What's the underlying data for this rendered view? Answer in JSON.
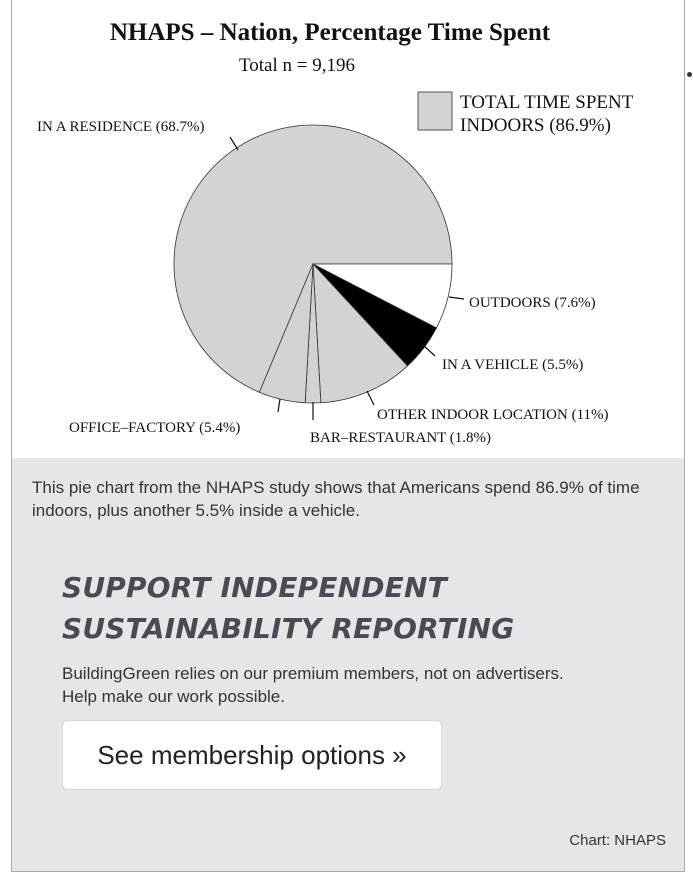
{
  "chart_data": {
    "type": "pie",
    "title": "NHAPS – Nation, Percentage Time Spent",
    "subtitle": "Total n = 9,196",
    "slices": [
      {
        "label": "IN A RESIDENCE (68.7%)",
        "value": 68.7,
        "color": "#d3d3d3"
      },
      {
        "label": "OUTDOORS (7.6%)",
        "value": 7.6,
        "color": "#ffffff"
      },
      {
        "label": "IN A VEHICLE (5.5%)",
        "value": 5.5,
        "color": "#000000"
      },
      {
        "label": "OTHER INDOOR LOCATION (11%)",
        "value": 11,
        "color": "#d3d3d3"
      },
      {
        "label": "BAR–RESTAURANT (1.8%)",
        "value": 1.8,
        "color": "#d3d3d3"
      },
      {
        "label": "OFFICE–FACTORY (5.4%)",
        "value": 5.4,
        "color": "#d3d3d3"
      }
    ],
    "legend": [
      {
        "label_line1": "TOTAL TIME SPENT",
        "label_line2": "INDOORS (86.9%)",
        "color": "#d3d3d3"
      }
    ],
    "legend_position": "top-right"
  },
  "caption": "This pie chart from the NHAPS study shows that Americans spend 86.9% of time indoors, plus another 5.5% inside a vehicle.",
  "promo": {
    "heading_line1": "SUPPORT INDEPENDENT",
    "heading_line2": "SUSTAINABILITY REPORTING",
    "text_line1": "BuildingGreen relies on our premium members, not on advertisers.",
    "text_line2": "Help make our work possible.",
    "button_label": "See membership options »"
  },
  "credit": "Chart: NHAPS"
}
